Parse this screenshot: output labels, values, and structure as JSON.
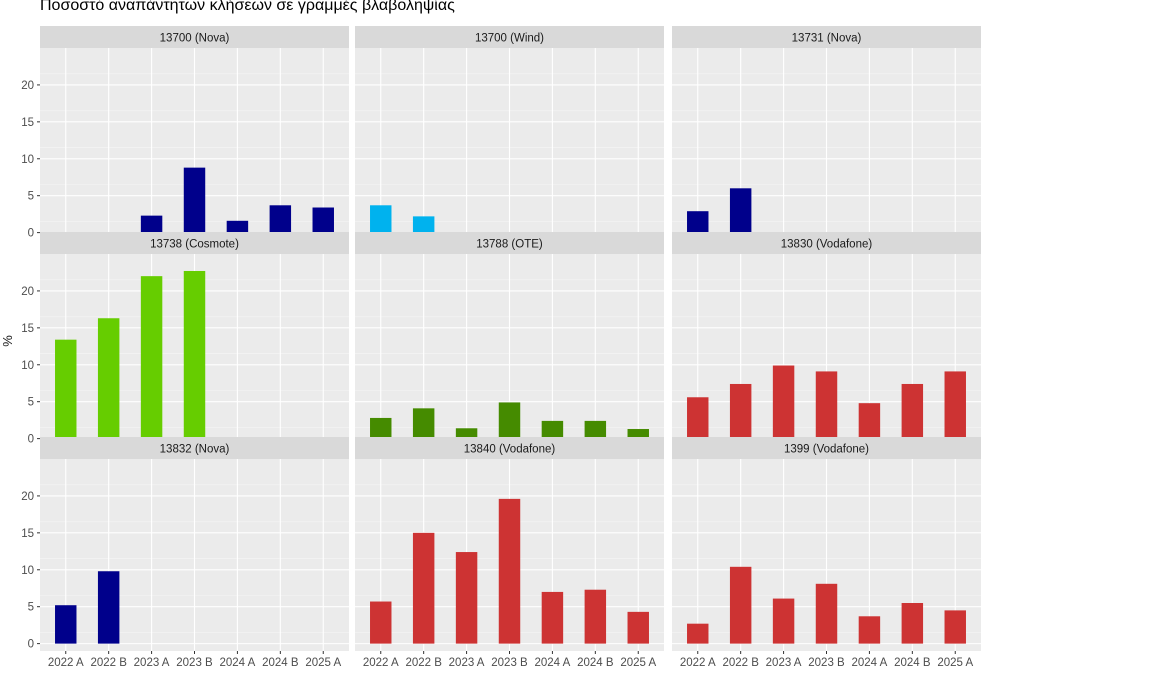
{
  "chart_data": {
    "type": "bar",
    "title": "Ποσοστό αναπάντητων κλήσεων σε γραμμές βλαβοληψίας",
    "ylabel": "%",
    "xlabel": "",
    "categories": [
      "2022 A",
      "2022 B",
      "2023 A",
      "2023 B",
      "2024 A",
      "2024 B",
      "2025 A"
    ],
    "ylim": [
      -1,
      25
    ],
    "yticks": [
      0,
      5,
      10,
      15,
      20
    ],
    "grid": true,
    "facets": [
      {
        "name": "13700 (Nova)",
        "color": "#00008B",
        "values": [
          null,
          null,
          2.3,
          8.8,
          1.6,
          3.7,
          3.4
        ]
      },
      {
        "name": "13700 (Wind)",
        "color": "#00B2EE",
        "values": [
          3.7,
          2.2,
          null,
          null,
          null,
          null,
          null
        ]
      },
      {
        "name": "13731 (Nova)",
        "color": "#00008B",
        "values": [
          2.9,
          6.0,
          null,
          null,
          null,
          null,
          null
        ]
      },
      {
        "name": "13738 (Cosmote)",
        "color": "#66CD00",
        "values": [
          13.4,
          16.3,
          22.0,
          22.7,
          null,
          null,
          null
        ]
      },
      {
        "name": "13788 (OTE)",
        "color": "#458B00",
        "values": [
          2.8,
          4.1,
          1.4,
          4.9,
          2.4,
          2.4,
          1.3
        ]
      },
      {
        "name": "13830 (Vodafone)",
        "color": "#CD3333",
        "values": [
          5.6,
          7.4,
          9.9,
          9.1,
          4.8,
          7.4,
          9.1
        ]
      },
      {
        "name": "13832 (Nova)",
        "color": "#00008B",
        "values": [
          5.2,
          9.8,
          null,
          null,
          null,
          null,
          null
        ]
      },
      {
        "name": "13840 (Vodafone)",
        "color": "#CD3333",
        "values": [
          5.7,
          15.0,
          12.4,
          19.6,
          7.0,
          7.3,
          4.3
        ]
      },
      {
        "name": "1399 (Vodafone)",
        "color": "#CD3333",
        "values": [
          2.7,
          10.4,
          6.1,
          8.1,
          3.7,
          5.5,
          4.5
        ]
      }
    ]
  }
}
